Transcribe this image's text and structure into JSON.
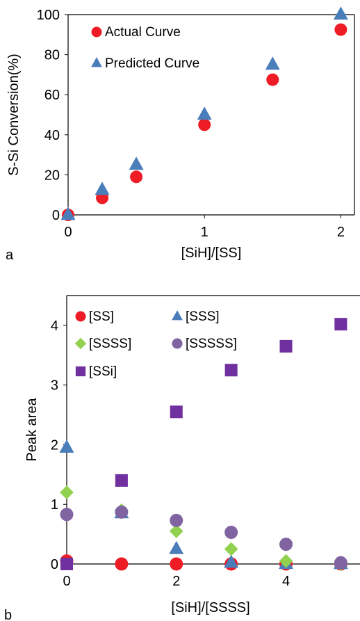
{
  "chart_data": [
    {
      "type": "scatter",
      "panel_label": "a",
      "xlabel": "[SiH]/[SS]",
      "ylabel": "S-Si Conversion(%)",
      "xlim": [
        0,
        2.1
      ],
      "ylim": [
        0,
        100
      ],
      "xticks": [
        0,
        1,
        2
      ],
      "yticks": [
        0,
        20,
        40,
        60,
        80,
        100
      ],
      "grid": false,
      "legend_position": "top-left",
      "series": [
        {
          "name": "Actual Curve",
          "marker": "circle",
          "color": "#ee1c25",
          "x": [
            0,
            0.25,
            0.5,
            1,
            1.5,
            2
          ],
          "y": [
            0,
            8.5,
            19,
            45,
            67.5,
            92.5
          ]
        },
        {
          "name": "Predicted Curve",
          "marker": "triangle",
          "color": "#4a7ebb",
          "x": [
            0,
            0.25,
            0.5,
            1,
            1.5,
            2
          ],
          "y": [
            0,
            12.5,
            25,
            50,
            75,
            100
          ]
        }
      ]
    },
    {
      "type": "scatter",
      "panel_label": "b",
      "xlabel": "[SiH]/[SSSS]",
      "ylabel": "Peak area",
      "xlim": [
        0,
        5.35
      ],
      "ylim": [
        0,
        4.5
      ],
      "xticks": [
        0,
        2,
        4
      ],
      "yticks": [
        0,
        1,
        2,
        3,
        4
      ],
      "grid": false,
      "legend_position": "top-left",
      "series": [
        {
          "name": "[SS]",
          "marker": "circle",
          "color": "#ee1c25",
          "x": [
            0,
            1,
            2,
            3,
            4,
            5
          ],
          "y": [
            0.05,
            0,
            0,
            0,
            0,
            0
          ]
        },
        {
          "name": "[SSS]",
          "marker": "triangle",
          "color": "#4a7ebb",
          "x": [
            0,
            1,
            2,
            3,
            4,
            5
          ],
          "y": [
            1.95,
            0.85,
            0.25,
            0.02,
            0,
            0
          ]
        },
        {
          "name": "[SSSS]",
          "marker": "diamond",
          "color": "#92d050",
          "x": [
            0,
            1,
            2,
            3,
            4,
            5
          ],
          "y": [
            1.2,
            0.9,
            0.55,
            0.25,
            0.05,
            0
          ]
        },
        {
          "name": "[SSSSS]",
          "marker": "circle",
          "color": "#8064a2",
          "x": [
            0,
            1,
            2,
            3,
            4,
            5
          ],
          "y": [
            0.83,
            0.87,
            0.73,
            0.53,
            0.33,
            0.02
          ]
        },
        {
          "name": "[SSi]",
          "marker": "square",
          "color": "#7030a0",
          "x": [
            0,
            1,
            2,
            3,
            4,
            5
          ],
          "y": [
            0,
            1.4,
            2.55,
            3.25,
            3.65,
            4.02
          ]
        }
      ]
    }
  ]
}
